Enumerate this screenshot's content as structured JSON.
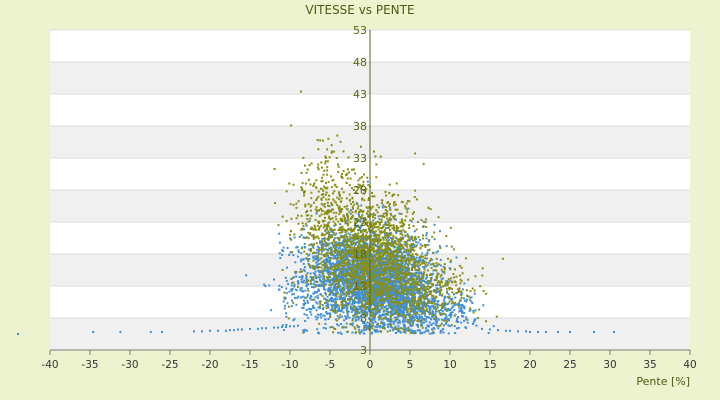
{
  "chart_data": {
    "type": "scatter",
    "title": "VITESSE vs PENTE",
    "xlabel": "Pente [%]",
    "ylabel": "",
    "xlim": [
      -40,
      40
    ],
    "ylim": [
      3,
      53
    ],
    "x_ticks": [
      "-40",
      "-35",
      "-30",
      "-25",
      "-20",
      "-15",
      "-10",
      "-5",
      "0",
      "5",
      "10",
      "15",
      "20",
      "25",
      "30",
      "35",
      "40"
    ],
    "y_ticks": [
      "3",
      "8",
      "13",
      "18",
      "23",
      "28",
      "33",
      "38",
      "43",
      "48",
      "53"
    ],
    "grid": "horizontal banded",
    "series": [
      {
        "color": "#3f8fd8",
        "clusters": [
          {
            "cx": 0.5,
            "cy": 14.5,
            "sx": 3.2,
            "sy": 3.8,
            "n": 2200
          },
          {
            "cx": 3.5,
            "cy": 11.0,
            "sx": 3.0,
            "sy": 2.8,
            "n": 900
          },
          {
            "cx": -3.0,
            "cy": 15.5,
            "sx": 2.8,
            "sy": 3.6,
            "n": 700
          },
          {
            "cx": 9.0,
            "cy": 9.0,
            "sx": 2.5,
            "sy": 1.6,
            "n": 220
          },
          {
            "cx": -8.0,
            "cy": 13.0,
            "sx": 2.2,
            "sy": 3.5,
            "n": 160
          }
        ],
        "tail": [
          [
            -44,
            5.5
          ],
          [
            -34.6,
            5.8
          ],
          [
            -31.2,
            5.8
          ],
          [
            -27.4,
            5.8
          ],
          [
            -26.0,
            5.8
          ],
          [
            -22.0,
            5.9
          ],
          [
            -21.0,
            5.9
          ],
          [
            -20.0,
            6.0
          ],
          [
            -19.0,
            6.0
          ],
          [
            -18.0,
            6.0
          ],
          [
            -17.5,
            6.1
          ],
          [
            -17.0,
            6.1
          ],
          [
            -16.5,
            6.2
          ],
          [
            -16.0,
            6.2
          ],
          [
            -15.0,
            6.3
          ],
          [
            -14.0,
            6.3
          ],
          [
            -13.5,
            6.4
          ],
          [
            -13.0,
            6.4
          ],
          [
            -12.0,
            6.5
          ],
          [
            -11.5,
            6.5
          ],
          [
            -11.0,
            6.6
          ],
          [
            -10.5,
            6.6
          ],
          [
            -10.0,
            6.7
          ],
          [
            -9.5,
            6.7
          ],
          [
            -9.0,
            6.8
          ],
          [
            14.0,
            6.3
          ],
          [
            15.0,
            6.2
          ],
          [
            16.0,
            6.1
          ],
          [
            17.0,
            6.0
          ],
          [
            17.5,
            6.0
          ],
          [
            18.5,
            5.9
          ],
          [
            19.5,
            5.9
          ],
          [
            20.0,
            5.8
          ],
          [
            21.0,
            5.8
          ],
          [
            22.0,
            5.8
          ],
          [
            23.5,
            5.8
          ],
          [
            25.0,
            5.8
          ],
          [
            28.0,
            5.8
          ],
          [
            30.5,
            5.8
          ]
        ]
      },
      {
        "color": "#8a8f12",
        "clusters": [
          {
            "cx": -1.5,
            "cy": 19.0,
            "sx": 3.5,
            "sy": 5.0,
            "n": 1200
          },
          {
            "cx": 2.5,
            "cy": 15.0,
            "sx": 3.0,
            "sy": 4.5,
            "n": 700
          },
          {
            "cx": 7.5,
            "cy": 12.0,
            "sx": 2.8,
            "sy": 2.5,
            "n": 250
          },
          {
            "cx": -5.5,
            "cy": 27.0,
            "sx": 1.8,
            "sy": 4.5,
            "n": 160
          }
        ],
        "tail": [
          [
            -5.2,
            36.0
          ],
          [
            -4.8,
            35.0
          ],
          [
            -4.5,
            34.0
          ],
          [
            -5.5,
            33.0
          ],
          [
            -6.0,
            31.5
          ],
          [
            -4.0,
            32.0
          ],
          [
            -3.5,
            30.5
          ],
          [
            -8.0,
            29.0
          ],
          [
            -8.5,
            28.0
          ],
          [
            0.5,
            34.0
          ],
          [
            0.8,
            32.0
          ],
          [
            -1.0,
            30.0
          ],
          [
            -7.0,
            26.0
          ],
          [
            -9.0,
            24.0
          ],
          [
            -2.0,
            28.0
          ],
          [
            3.0,
            26.0
          ],
          [
            6.0,
            23.0
          ],
          [
            -10.0,
            21.0
          ],
          [
            11.0,
            12.0
          ],
          [
            12.5,
            9.5
          ],
          [
            13.5,
            8.0
          ],
          [
            14.5,
            7.5
          ]
        ]
      }
    ]
  }
}
